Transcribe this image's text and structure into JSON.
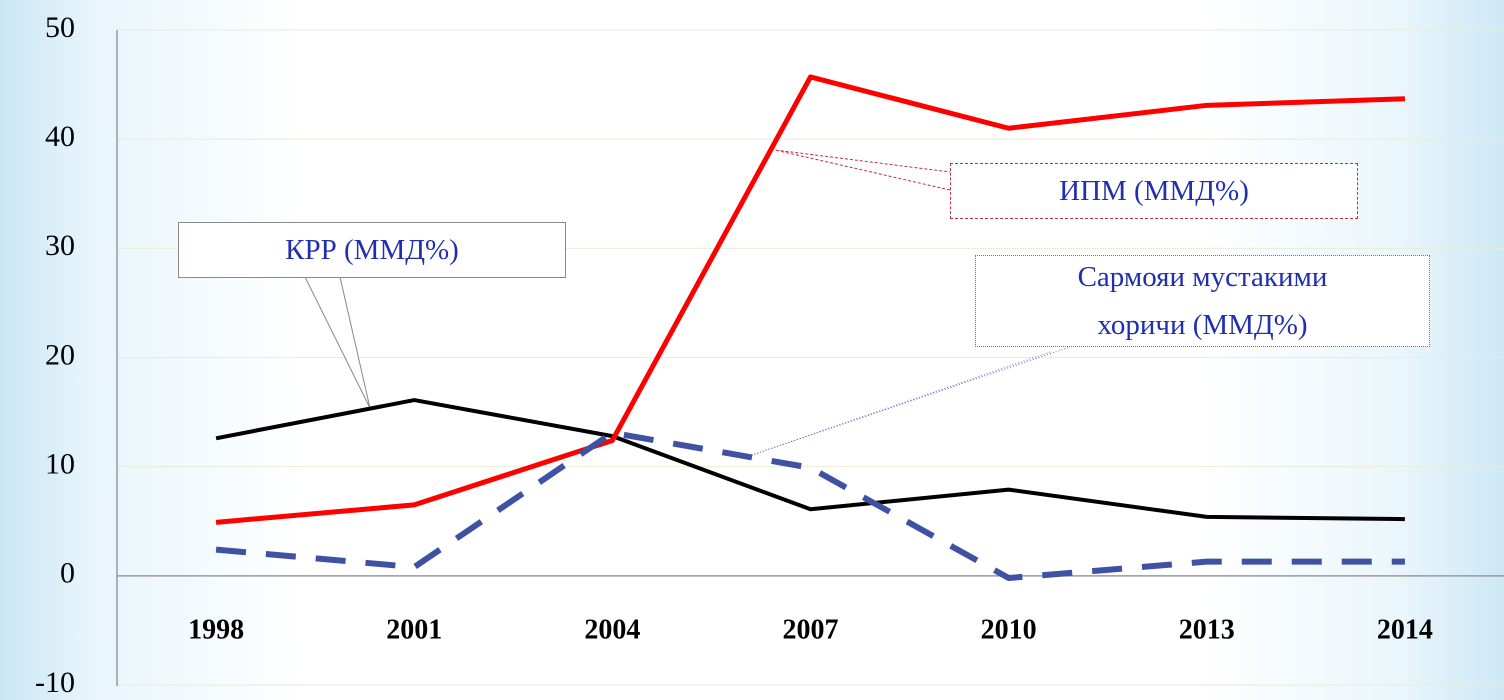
{
  "chart_data": {
    "type": "line",
    "categories": [
      "1998",
      "2001",
      "2004",
      "2007",
      "2010",
      "2013",
      "2014"
    ],
    "series": [
      {
        "name": "КРР (ММД%)",
        "color": "#000000",
        "values": [
          12.6,
          16.1,
          12.8,
          6.1,
          7.9,
          5.4,
          5.2
        ]
      },
      {
        "name": "ИПМ (ММД%)",
        "color": "#ff0000",
        "values": [
          4.9,
          6.5,
          12.4,
          45.7,
          41.0,
          43.1,
          43.7
        ]
      },
      {
        "name": "Сармояи мустакими хоричи (ММД%)",
        "color": "#3f51a3",
        "dashed": true,
        "values": [
          2.4,
          0.8,
          13.1,
          9.9,
          -0.2,
          1.3,
          1.3
        ]
      }
    ],
    "ylim": [
      -10,
      50
    ],
    "yticks": [
      -10,
      0,
      10,
      20,
      30,
      40,
      50
    ],
    "grid": true
  }
}
